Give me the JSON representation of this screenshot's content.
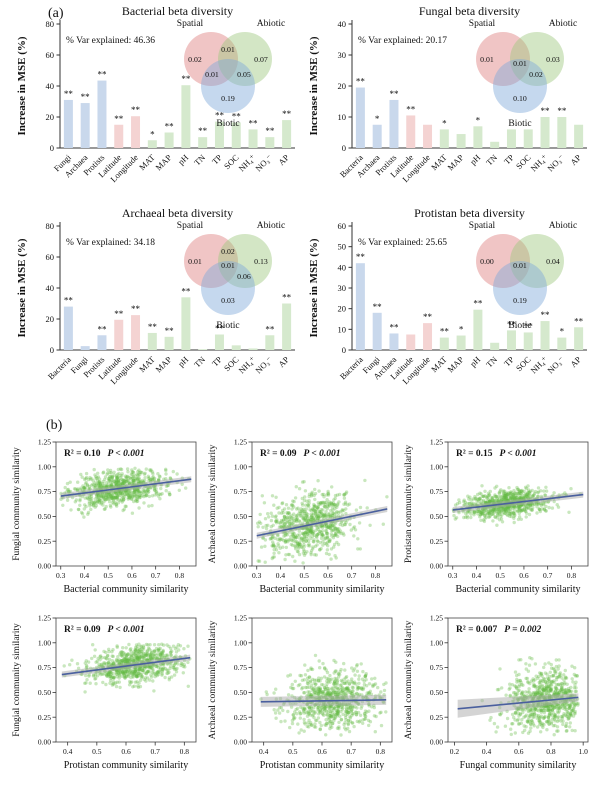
{
  "page": {
    "panel_a_label": "(a)",
    "panel_b_label": "(b)"
  },
  "colors": {
    "bar_biotic": "#c9d8ec",
    "bar_spatial": "#f4d3d2",
    "bar_abiotic": "#d5e9cd",
    "venn_spatial": "#dd7e7e",
    "venn_abiotic": "#9dc87e",
    "venn_biotic": "#7fa8d9",
    "point": "#65bb45",
    "line": "#4a5f9e",
    "band": "#aaaaaa",
    "axis": "#333333"
  },
  "venn_labels": {
    "spatial": "Spatial",
    "abiotic": "Abiotic",
    "biotic": "Biotic"
  },
  "chart_data": [
    {
      "type": "bar",
      "title": "Bacterial beta diversity",
      "ylabel": "Increase in MSE (%)",
      "var_explained": "% Var explained: 46.36",
      "ylim": [
        0,
        80
      ],
      "yticks": [
        0,
        20,
        40,
        60,
        80
      ],
      "categories": [
        "Fungi",
        "Archaea",
        "Protists",
        "Latitude",
        "Longitude",
        "MAT",
        "MAP",
        "pH",
        "TN",
        "TP",
        "SOC",
        "NH₄⁺",
        "NO₃⁻",
        "AP"
      ],
      "values": [
        31,
        29,
        43.5,
        15,
        20.5,
        5,
        10,
        40.5,
        7,
        17,
        16.5,
        12,
        7,
        18
      ],
      "sig": [
        "**",
        "**",
        "**",
        "**",
        "**",
        "*",
        "**",
        "**",
        "**",
        "**",
        "**",
        "**",
        "**",
        "**"
      ],
      "groups": [
        "biotic",
        "biotic",
        "biotic",
        "spatial",
        "spatial",
        "abiotic",
        "abiotic",
        "abiotic",
        "abiotic",
        "abiotic",
        "abiotic",
        "abiotic",
        "abiotic",
        "abiotic"
      ],
      "venn": {
        "spatial": "0.02",
        "abiotic": "0.07",
        "biotic": "0.19",
        "spatial_abiotic": "0.01",
        "center": "",
        "spatial_biotic": "0.01",
        "abiotic_biotic": "0.05"
      }
    },
    {
      "type": "bar",
      "title": "Fungal beta diversity",
      "ylabel": "Increase in MSE (%)",
      "var_explained": "% Var explained: 20.17",
      "ylim": [
        0,
        40
      ],
      "yticks": [
        0,
        10,
        20,
        30,
        40
      ],
      "categories": [
        "Bacteria",
        "Archaea",
        "Protists",
        "Latitude",
        "Longitude",
        "MAT",
        "MAP",
        "pH",
        "TN",
        "TP",
        "SOC",
        "NH₄⁺",
        "NO₃⁻",
        "AP"
      ],
      "values": [
        19.5,
        7.5,
        15.5,
        10.5,
        7.5,
        6,
        4.5,
        7,
        2,
        6,
        6,
        10,
        10,
        7.5
      ],
      "sig": [
        "**",
        "*",
        "**",
        "**",
        "",
        "*",
        "",
        "*",
        "",
        "",
        "",
        "**",
        "**",
        ""
      ],
      "groups": [
        "biotic",
        "biotic",
        "biotic",
        "spatial",
        "spatial",
        "abiotic",
        "abiotic",
        "abiotic",
        "abiotic",
        "abiotic",
        "abiotic",
        "abiotic",
        "abiotic",
        "abiotic"
      ],
      "venn": {
        "spatial": "0.01",
        "abiotic": "0.03",
        "biotic": "0.10",
        "spatial_abiotic": "",
        "center": "0.01",
        "spatial_biotic": "",
        "abiotic_biotic": "0.02"
      }
    },
    {
      "type": "bar",
      "title": "Archaeal beta diversity",
      "ylabel": "Increase in MSE (%)",
      "var_explained": "% Var explained: 34.18",
      "ylim": [
        0,
        80
      ],
      "yticks": [
        0,
        20,
        40,
        60,
        80
      ],
      "categories": [
        "Bacteria",
        "Fungi",
        "Protists",
        "Latitude",
        "Longitude",
        "MAT",
        "MAP",
        "pH",
        "TN",
        "TP",
        "SOC",
        "NH₄⁺",
        "NO₃⁻",
        "AP"
      ],
      "values": [
        28,
        2.5,
        9.5,
        19.5,
        22.5,
        11,
        8.5,
        34,
        0.5,
        10,
        3,
        1,
        9.5,
        30
      ],
      "sig": [
        "**",
        "",
        "**",
        "**",
        "**",
        "**",
        "**",
        "**",
        "",
        "**",
        "",
        "",
        "**",
        "**"
      ],
      "groups": [
        "biotic",
        "biotic",
        "biotic",
        "spatial",
        "spatial",
        "abiotic",
        "abiotic",
        "abiotic",
        "abiotic",
        "abiotic",
        "abiotic",
        "abiotic",
        "abiotic",
        "abiotic"
      ],
      "venn": {
        "spatial": "0.01",
        "abiotic": "0.13",
        "biotic": "0.03",
        "spatial_abiotic": "0.02",
        "center": "0.01",
        "spatial_biotic": "",
        "abiotic_biotic": "0.06"
      }
    },
    {
      "type": "bar",
      "title": "Protistan beta diversity",
      "ylabel": "Increase in MSE (%)",
      "var_explained": "% Var explained: 25.65",
      "ylim": [
        0,
        60
      ],
      "yticks": [
        0,
        10,
        20,
        30,
        40,
        50,
        60
      ],
      "categories": [
        "Bacteria",
        "Fungi",
        "Archaea",
        "Latitude",
        "Longitude",
        "MAT",
        "MAP",
        "pH",
        "TN",
        "TP",
        "SOC",
        "NH₄⁺",
        "NO₃⁻",
        "AP"
      ],
      "values": [
        42,
        18,
        8,
        7.5,
        13,
        6,
        7,
        19.5,
        3.5,
        9.5,
        8.5,
        14,
        6,
        11
      ],
      "sig": [
        "**",
        "**",
        "**",
        "",
        "**",
        "**",
        "*",
        "**",
        "",
        "**",
        "**",
        "**",
        "*",
        "**"
      ],
      "groups": [
        "biotic",
        "biotic",
        "biotic",
        "spatial",
        "spatial",
        "abiotic",
        "abiotic",
        "abiotic",
        "abiotic",
        "abiotic",
        "abiotic",
        "abiotic",
        "abiotic",
        "abiotic"
      ],
      "venn": {
        "spatial": "0.00",
        "abiotic": "0.04",
        "biotic": "0.19",
        "spatial_abiotic": "",
        "center": "0.01",
        "spatial_biotic": "",
        "abiotic_biotic": ""
      }
    },
    {
      "type": "scatter",
      "r2_label": "R² = 0.10",
      "p_label": "P < 0.001",
      "xlabel": "Bacterial community similarity",
      "ylabel": "Fungial community similarity",
      "xlim": [
        0.28,
        0.87
      ],
      "ylim": [
        0,
        1.25
      ],
      "xticks": [
        "0.3",
        "0.4",
        "0.5",
        "0.6",
        "0.7",
        "0.8"
      ],
      "yticks": [
        "0.00",
        "0.25",
        "0.50",
        "0.75",
        "1.00",
        "1.25"
      ],
      "line": {
        "x1": 0.3,
        "y1": 0.705,
        "x2": 0.85,
        "y2": 0.875
      },
      "band": [
        3,
        3
      ],
      "cloud": {
        "n": 750,
        "seed": 11,
        "x_mean": 0.545,
        "x_sd": 0.105,
        "x_clip": [
          0.3,
          0.85
        ],
        "noise_sd": 0.085,
        "y_clip": [
          0.22,
          0.99
        ]
      }
    },
    {
      "type": "scatter",
      "r2_label": "R² = 0.09",
      "p_label": "P < 0.001",
      "xlabel": "Bacterial community similarity",
      "ylabel": "Archaeal community similarity",
      "xlim": [
        0.28,
        0.87
      ],
      "ylim": [
        0,
        1.25
      ],
      "xticks": [
        "0.3",
        "0.4",
        "0.5",
        "0.6",
        "0.7",
        "0.8"
      ],
      "yticks": [
        "0.00",
        "0.25",
        "0.50",
        "0.75",
        "1.00",
        "1.25"
      ],
      "line": {
        "x1": 0.3,
        "y1": 0.305,
        "x2": 0.85,
        "y2": 0.575
      },
      "band": [
        3,
        3
      ],
      "cloud": {
        "n": 750,
        "seed": 22,
        "x_mean": 0.52,
        "x_sd": 0.1,
        "x_clip": [
          0.3,
          0.85
        ],
        "noise_sd": 0.155,
        "y_clip": [
          0.03,
          0.9
        ]
      }
    },
    {
      "type": "scatter",
      "r2_label": "R² = 0.15",
      "p_label": "P < 0.001",
      "xlabel": "Bacterial community similarity",
      "ylabel": "Protistan community similarity",
      "xlim": [
        0.28,
        0.87
      ],
      "ylim": [
        0,
        1.25
      ],
      "xticks": [
        "0.3",
        "0.4",
        "0.5",
        "0.6",
        "0.7",
        "0.8"
      ],
      "yticks": [
        "0.00",
        "0.25",
        "0.50",
        "0.75",
        "1.00",
        "1.25"
      ],
      "line": {
        "x1": 0.3,
        "y1": 0.565,
        "x2": 0.85,
        "y2": 0.72
      },
      "band": [
        3,
        3
      ],
      "cloud": {
        "n": 750,
        "seed": 33,
        "x_mean": 0.52,
        "x_sd": 0.1,
        "x_clip": [
          0.3,
          0.85
        ],
        "noise_sd": 0.065,
        "y_clip": [
          0.4,
          0.85
        ]
      }
    },
    {
      "type": "scatter",
      "r2_label": "R² = 0.09",
      "p_label": "P < 0.001",
      "xlabel": "Protistan community similarity",
      "ylabel": "Fungial community similarity",
      "xlim": [
        0.36,
        0.84
      ],
      "ylim": [
        0,
        1.25
      ],
      "xticks": [
        "0.4",
        "0.5",
        "0.6",
        "0.7",
        "0.8"
      ],
      "yticks": [
        "0.00",
        "0.25",
        "0.50",
        "0.75",
        "1.00",
        "1.25"
      ],
      "line": {
        "x1": 0.38,
        "y1": 0.68,
        "x2": 0.82,
        "y2": 0.85
      },
      "band": [
        3,
        3
      ],
      "cloud": {
        "n": 750,
        "seed": 44,
        "x_mean": 0.63,
        "x_sd": 0.085,
        "x_clip": [
          0.38,
          0.82
        ],
        "noise_sd": 0.09,
        "y_clip": [
          0.22,
          0.99
        ]
      }
    },
    {
      "type": "scatter",
      "r2_label": "",
      "p_label": "",
      "xlabel": "Protistan community similarity",
      "ylabel": "Archaeal community similarity",
      "xlim": [
        0.36,
        0.84
      ],
      "ylim": [
        0,
        1.25
      ],
      "xticks": [
        "0.4",
        "0.5",
        "0.6",
        "0.7",
        "0.8"
      ],
      "yticks": [
        "0.00",
        "0.25",
        "0.50",
        "0.75",
        "1.00",
        "1.25"
      ],
      "line": {
        "x1": 0.39,
        "y1": 0.405,
        "x2": 0.82,
        "y2": 0.425
      },
      "band": [
        5,
        5
      ],
      "cloud": {
        "n": 750,
        "seed": 55,
        "x_mean": 0.635,
        "x_sd": 0.08,
        "x_clip": [
          0.39,
          0.82
        ],
        "noise_sd": 0.155,
        "y_clip": [
          0.07,
          0.88
        ]
      }
    },
    {
      "type": "scatter",
      "r2_label": "R² = 0.007",
      "p_label": "P = 0.002",
      "xlabel": "Fungal community similarity",
      "ylabel": "Archaeal community similarity",
      "xlim": [
        0.16,
        1.03
      ],
      "ylim": [
        0,
        1.25
      ],
      "xticks": [
        "0.2",
        "0.4",
        "0.6",
        "0.8",
        "1.0"
      ],
      "yticks": [
        "0.00",
        "0.25",
        "0.50",
        "0.75",
        "1.00",
        "1.25"
      ],
      "line": {
        "x1": 0.22,
        "y1": 0.335,
        "x2": 0.97,
        "y2": 0.45
      },
      "band": [
        9,
        4
      ],
      "cloud": {
        "n": 750,
        "seed": 66,
        "x_mean": 0.78,
        "x_sd": 0.13,
        "x_clip": [
          0.22,
          0.97
        ],
        "noise_sd": 0.15,
        "y_clip": [
          0.07,
          0.88
        ]
      }
    }
  ]
}
